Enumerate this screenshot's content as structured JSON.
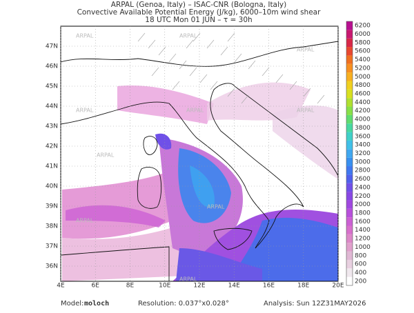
{
  "header": {
    "line1": "ARPAL (Genoa, Italy)  –  ISAC-CNR (Bologna, Italy)",
    "line2": "Convective Available Potential Energy (J/kg), 6000–10m wind shear",
    "line3": "18 UTC Mon 01 JUN  –  τ = 30h"
  },
  "map": {
    "lat_labels": [
      "47N",
      "46N",
      "45N",
      "44N",
      "43N",
      "42N",
      "41N",
      "40N",
      "39N",
      "38N",
      "37N",
      "36N"
    ],
    "lon_labels": [
      "4E",
      "6E",
      "8E",
      "10E",
      "12E",
      "14E",
      "16E",
      "18E",
      "20E"
    ],
    "watermark": "ARPAL",
    "colorbar": {
      "ticks": [
        200,
        400,
        600,
        800,
        1000,
        1200,
        1400,
        1600,
        1800,
        2000,
        2200,
        2400,
        2600,
        2800,
        3000,
        3200,
        3400,
        3600,
        3800,
        4000,
        4200,
        4400,
        4600,
        4800,
        5000,
        5200,
        5400,
        5600,
        5800,
        6000,
        6200
      ],
      "colors": [
        "#ffffff",
        "#f0e8ee",
        "#e8d0e0",
        "#e0b8d4",
        "#e0a0cc",
        "#dc88c8",
        "#d870cc",
        "#cc60d4",
        "#b850dc",
        "#a048e0",
        "#8848e4",
        "#7050e8",
        "#5060ec",
        "#4078f0",
        "#3890f0",
        "#40a8f0",
        "#40c0e8",
        "#40d0c8",
        "#48d8a0",
        "#60dc70",
        "#88e048",
        "#b0e030",
        "#d8e020",
        "#f0d020",
        "#f8b020",
        "#f89020",
        "#f07020",
        "#e84830",
        "#d82848",
        "#c81870",
        "#b81090"
      ]
    }
  },
  "footer": {
    "model_label": "Model:",
    "model": "moloch",
    "resolution": "Resolution: 0.037°x0.028°",
    "analysis": "Analysis: Sun 12Z31MAY2026"
  }
}
